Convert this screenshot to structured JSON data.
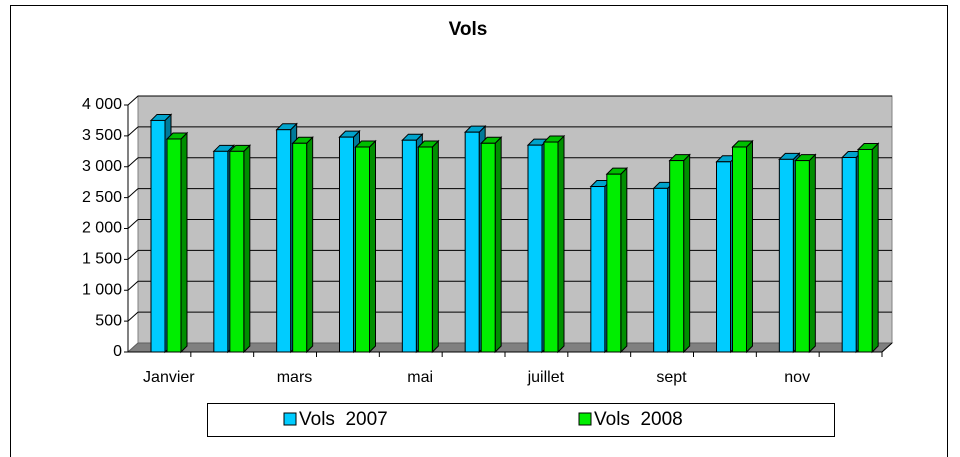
{
  "chart_data": {
    "type": "bar3d",
    "title": "Vols",
    "categories": [
      "Janvier",
      null,
      "mars",
      null,
      "mai",
      null,
      "juillet",
      null,
      "sept",
      null,
      "nov",
      null
    ],
    "series": [
      {
        "name": "Vols  2007",
        "color": "#00ccff",
        "values": [
          3750,
          3250,
          3600,
          3480,
          3430,
          3560,
          3350,
          2680,
          2650,
          3080,
          3120,
          3150
        ]
      },
      {
        "name": "Vols  2008",
        "color": "#00ee00",
        "values": [
          3450,
          3250,
          3380,
          3320,
          3320,
          3380,
          3400,
          2880,
          3100,
          3320,
          3100,
          3280
        ]
      }
    ],
    "ylim": [
      0,
      4000
    ],
    "yticks": [
      0,
      500,
      {
        "value": 1000,
        "label": "1 000"
      },
      {
        "value": 1500,
        "label": "1 500"
      },
      {
        "value": 2000,
        "label": "2 000"
      },
      {
        "value": 2500,
        "label": "2 500"
      },
      {
        "value": 3000,
        "label": "3 000"
      },
      {
        "value": 3500,
        "label": "3 500"
      },
      {
        "value": 4000,
        "label": "4 000"
      }
    ],
    "grid": true
  }
}
